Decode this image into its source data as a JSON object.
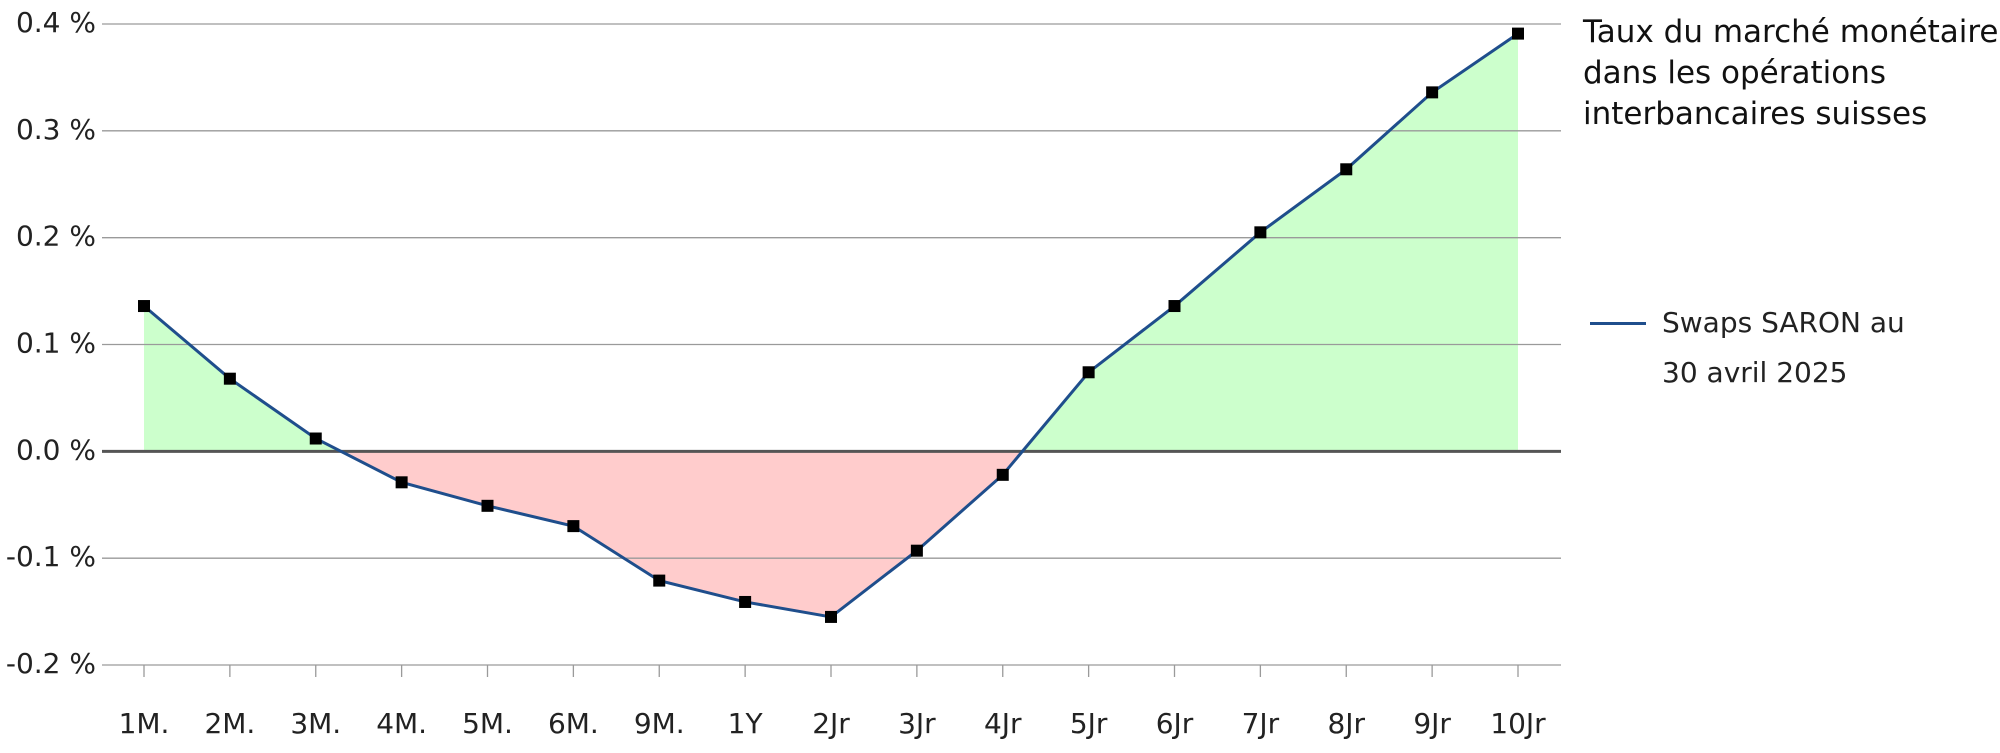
{
  "chart_data": {
    "type": "line",
    "title": "Taux du marché monétaire dans les opérations interbancaires suisses",
    "categories": [
      "1M.",
      "2M.",
      "3M.",
      "4M.",
      "5M.",
      "6M.",
      "9M.",
      "1Y",
      "2Jr",
      "3Jr",
      "4Jr",
      "5Jr",
      "6Jr",
      "7Jr",
      "8Jr",
      "9Jr",
      "10Jr"
    ],
    "series": [
      {
        "name": "Swaps SARON au 30 avril 2025",
        "color": "#1f4e8c",
        "values": [
          0.136,
          0.068,
          0.012,
          -0.029,
          -0.051,
          -0.07,
          -0.121,
          -0.141,
          -0.155,
          -0.093,
          -0.022,
          0.074,
          0.136,
          0.205,
          0.264,
          0.336,
          0.391
        ]
      }
    ],
    "ylim": [
      -0.2,
      0.4
    ],
    "yticks": [
      {
        "value": -0.2,
        "label": "-0.2 %"
      },
      {
        "value": -0.1,
        "label": "-0.1 %"
      },
      {
        "value": 0,
        "label": "0.0 %"
      },
      {
        "value": 0.1,
        "label": "0.1 %"
      },
      {
        "value": 0.2,
        "label": "0.2 %"
      },
      {
        "value": 0.3,
        "label": "0.3 %"
      },
      {
        "value": 0.4,
        "label": "0.4 %"
      }
    ],
    "grid": true,
    "area_colors": {
      "positive": "#ccffcc",
      "negative": "#ffcccc"
    },
    "legend": "right"
  }
}
